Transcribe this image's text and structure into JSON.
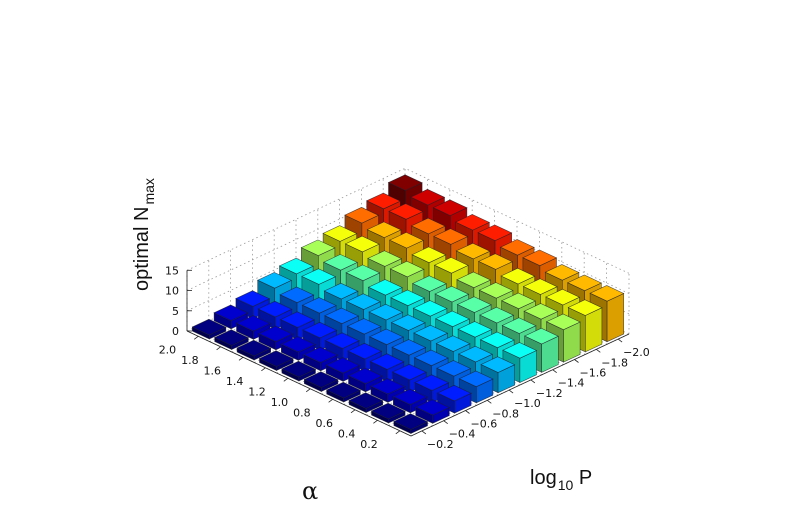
{
  "chart_data": {
    "type": "bar3d",
    "zlabel_main": "optimal N",
    "zlabel_sub": "max",
    "xlabel_main": "log",
    "xlabel_sub": "10",
    "xlabel_tail": " P",
    "ylabel": "α",
    "z_ticks": [
      "0",
      "5",
      "10",
      "15"
    ],
    "zlim": [
      0,
      15
    ],
    "x_ticks": [
      "−0.2",
      "−0.4",
      "−0.6",
      "−0.8",
      "−1.0",
      "−1.2",
      "−1.4",
      "−1.6",
      "−1.8",
      "−2.0"
    ],
    "y_ticks": [
      "0.2",
      "0.4",
      "0.6",
      "0.8",
      "1.0",
      "1.2",
      "1.4",
      "1.6",
      "1.8",
      "2.0"
    ],
    "log10P": [
      -0.2,
      -0.4,
      -0.6,
      -0.8,
      -1.0,
      -1.2,
      -1.4,
      -1.6,
      -1.8,
      -2.0
    ],
    "alpha": [
      0.2,
      0.4,
      0.6,
      0.8,
      1.0,
      1.2,
      1.4,
      1.6,
      1.8,
      2.0
    ],
    "values_by_alpha": [
      [
        1,
        2,
        3,
        4,
        5,
        6,
        7,
        8,
        9,
        10
      ],
      [
        1,
        2,
        3,
        4,
        5,
        6,
        7,
        8,
        9,
        10
      ],
      [
        1,
        2,
        3,
        4,
        5,
        6,
        7,
        8,
        9,
        10
      ],
      [
        1,
        2,
        3,
        4,
        5,
        6,
        7,
        8,
        9,
        11
      ],
      [
        1,
        2,
        3,
        4,
        5,
        6,
        7,
        8,
        10,
        11
      ],
      [
        1,
        2,
        3,
        4,
        5,
        6,
        7,
        9,
        10,
        12
      ],
      [
        1,
        2,
        3,
        4,
        5,
        6,
        8,
        9,
        11,
        12
      ],
      [
        1,
        2,
        3,
        4,
        5,
        7,
        8,
        10,
        11,
        13
      ],
      [
        1,
        2,
        3,
        4,
        6,
        7,
        9,
        10,
        12,
        13
      ],
      [
        1,
        2,
        3,
        5,
        6,
        8,
        9,
        11,
        12,
        14
      ]
    ],
    "colormap": "jet"
  }
}
